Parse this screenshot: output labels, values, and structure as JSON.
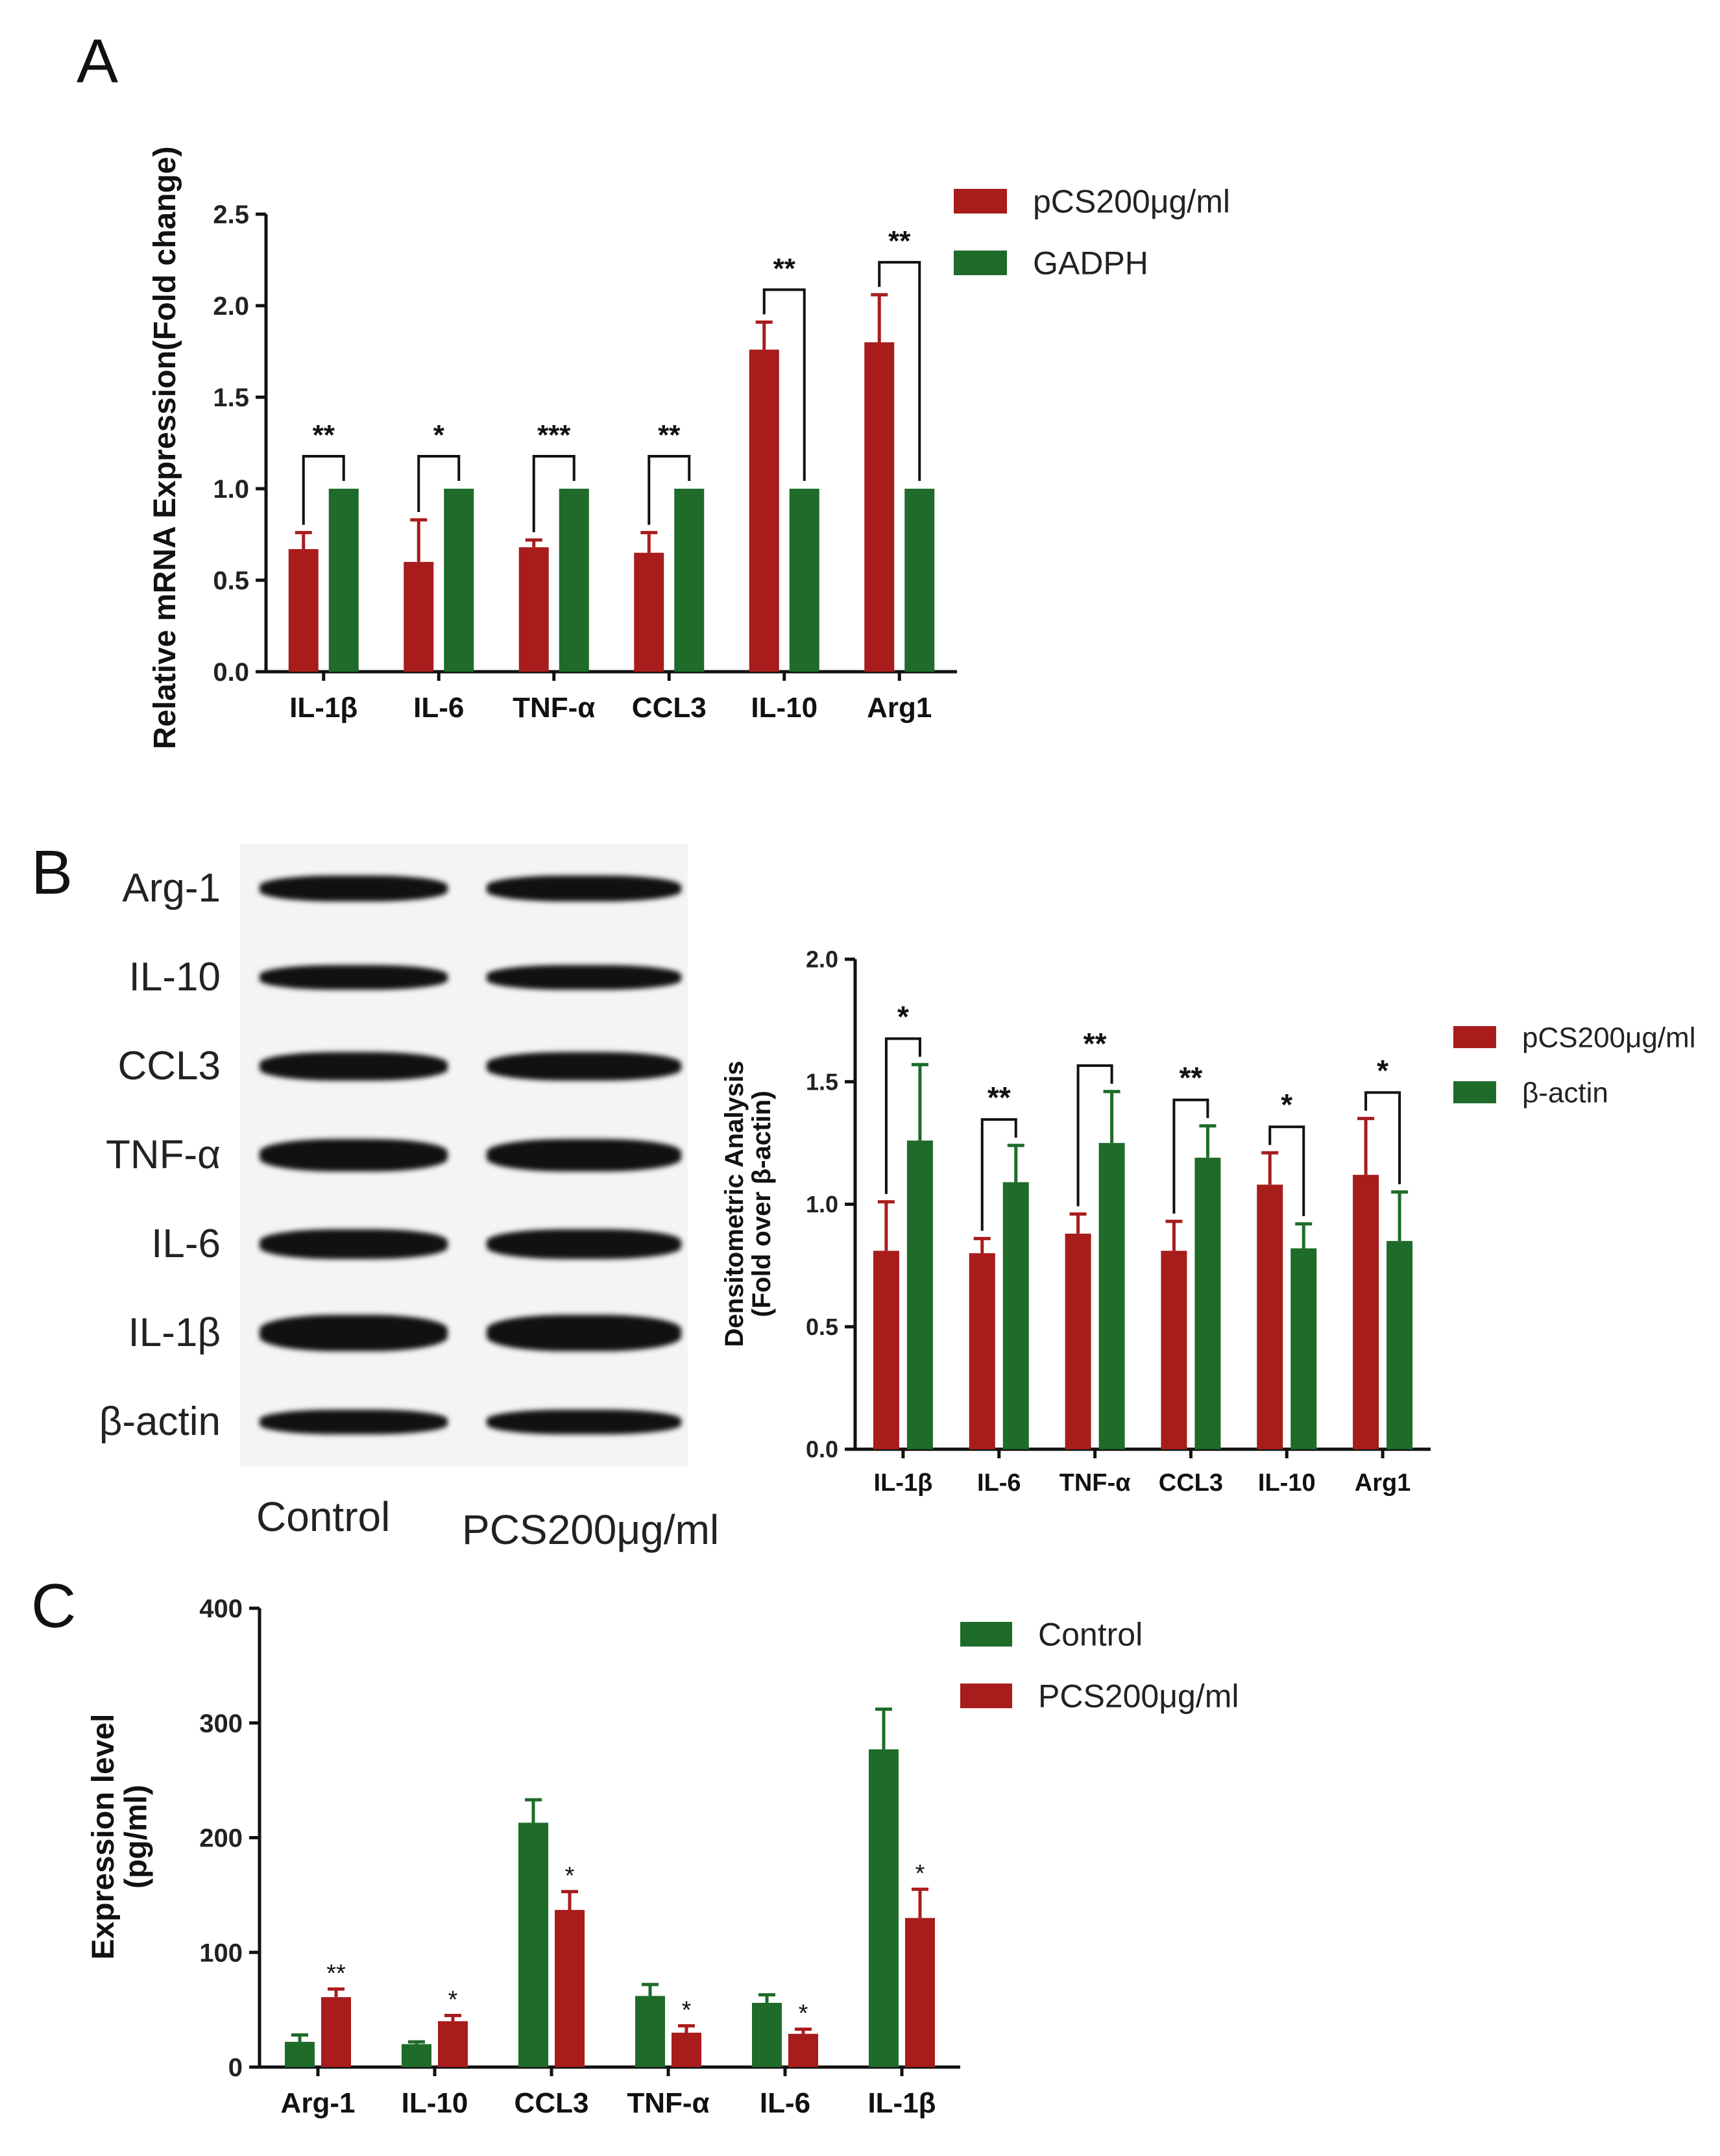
{
  "panels": {
    "A": {
      "letter": "A",
      "chart_data": {
        "type": "bar",
        "title": "",
        "xlabel": "",
        "ylabel": "Relative mRNA Expression(Fold change)",
        "ylim": [
          0,
          2.5
        ],
        "yticks": [
          "0.0",
          "0.5",
          "1.0",
          "1.5",
          "2.0",
          "2.5"
        ],
        "categories": [
          "IL-1β",
          "IL-6",
          "TNF-α",
          "CCL3",
          "IL-10",
          "Arg1"
        ],
        "series": [
          {
            "name": "pCS200μg/ml",
            "color": "#a81c1c",
            "values": [
              0.67,
              0.6,
              0.68,
              0.65,
              1.76,
              1.8
            ],
            "errors": [
              0.09,
              0.23,
              0.04,
              0.11,
              0.15,
              0.26
            ]
          },
          {
            "name": "GADPH",
            "color": "#1e6b2a",
            "values": [
              1.0,
              1.0,
              1.0,
              1.0,
              1.0,
              1.0
            ],
            "errors": [
              0,
              0,
              0,
              0,
              0,
              0
            ]
          }
        ],
        "significance": [
          "**",
          "*",
          "***",
          "**",
          "**",
          "**"
        ],
        "legend": "top-right"
      }
    },
    "B": {
      "letter": "B",
      "blot_rows": [
        "Arg-1",
        "IL-10",
        "CCL3",
        "TNF-α",
        "IL-6",
        "IL-1β",
        "β-actin"
      ],
      "blot_lanes": [
        "Control",
        "PCS200μg/ml"
      ],
      "chart_data": {
        "type": "bar",
        "title": "",
        "xlabel": "",
        "ylabel_line1": "Densitometric Analysis",
        "ylabel_line2": "(Fold over β-actin)",
        "ylim": [
          0,
          2.0
        ],
        "yticks": [
          "0.0",
          "0.5",
          "1.0",
          "1.5",
          "2.0"
        ],
        "categories": [
          "IL-1β",
          "IL-6",
          "TNF-α",
          "CCL3",
          "IL-10",
          "Arg1"
        ],
        "series": [
          {
            "name": "pCS200μg/ml",
            "color": "#a81c1c",
            "values": [
              0.81,
              0.8,
              0.88,
              0.81,
              1.08,
              1.12
            ],
            "errors": [
              0.2,
              0.06,
              0.08,
              0.12,
              0.13,
              0.23
            ]
          },
          {
            "name": "β-actin",
            "color": "#1e6b2a",
            "values": [
              1.26,
              1.09,
              1.25,
              1.19,
              0.82,
              0.85
            ],
            "errors": [
              0.31,
              0.15,
              0.21,
              0.13,
              0.1,
              0.2
            ]
          }
        ],
        "significance": [
          "*",
          "**",
          "**",
          "**",
          "*",
          "*"
        ],
        "legend": "top-right"
      }
    },
    "C": {
      "letter": "C",
      "chart_data": {
        "type": "bar",
        "title": "",
        "xlabel": "",
        "ylabel_line1": "Expression level",
        "ylabel_line2": "(pg/ml)",
        "ylim": [
          0,
          400
        ],
        "yticks": [
          "0",
          "100",
          "200",
          "300",
          "400"
        ],
        "categories": [
          "Arg-1",
          "IL-10",
          "CCL3",
          "TNF-α",
          "IL-6",
          "IL-1β"
        ],
        "series": [
          {
            "name": "Control",
            "color": "#1e6b2a",
            "values": [
              22,
              20,
              213,
              62,
              56,
              277
            ],
            "errors": [
              6,
              2,
              20,
              10,
              7,
              35
            ]
          },
          {
            "name": "PCS200μg/ml",
            "color": "#a81c1c",
            "values": [
              61,
              40,
              137,
              30,
              29,
              130
            ],
            "errors": [
              7,
              5,
              16,
              6,
              4,
              25
            ]
          }
        ],
        "significance": [
          "**",
          "*",
          "*",
          "*",
          "*",
          "*"
        ],
        "legend": "top-right"
      }
    }
  }
}
